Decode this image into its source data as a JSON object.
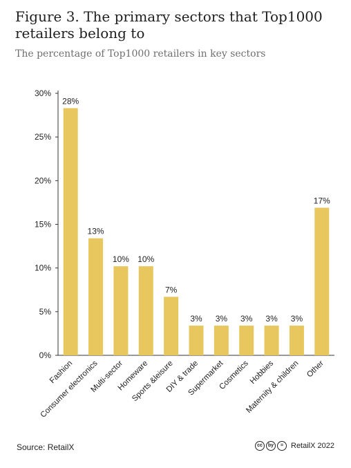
{
  "header": {
    "title": "Figure 3. The primary sectors that Top1000 retailers belong to",
    "subtitle": "The percentage of Top1000 retailers in key sectors"
  },
  "footer": {
    "source": "Source: RetailX",
    "license_icons": [
      "cc",
      "by",
      "="
    ],
    "brand": "RetailX 2022"
  },
  "colors": {
    "bar": "#E8C75E",
    "axis": "#333333",
    "text": "#1e1e1e"
  },
  "chart_data": {
    "type": "bar",
    "title": "",
    "xlabel": "",
    "ylabel": "",
    "categories": [
      "Fashion",
      "Consumer electronics",
      "Multi-sector",
      "Homeware",
      "Sports &leisure",
      "DIY & trade",
      "Supermarket",
      "Cosmetics",
      "Hobbies",
      "Maternity & children",
      "Other"
    ],
    "values": [
      28.3,
      13.4,
      10.2,
      10.2,
      6.7,
      3.4,
      3.4,
      3.4,
      3.4,
      3.4,
      16.9
    ],
    "data_labels": [
      "28%",
      "13%",
      "10%",
      "10%",
      "7%",
      "3%",
      "3%",
      "3%",
      "3%",
      "3%",
      "17%"
    ],
    "ylim": [
      0,
      30
    ],
    "yticks": [
      0,
      5,
      10,
      15,
      20,
      25,
      30
    ],
    "ytick_labels": [
      "0%",
      "5%",
      "10%",
      "15%",
      "20%",
      "25%",
      "30%"
    ],
    "grid": false,
    "legend": "none"
  }
}
